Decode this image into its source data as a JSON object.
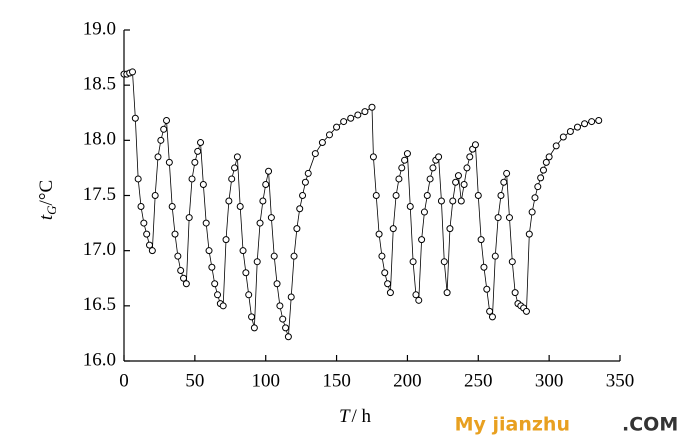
{
  "chart_data": {
    "type": "line",
    "xlabel": {
      "symbol": "T",
      "unit": "/ h"
    },
    "ylabel": {
      "symbol": "t",
      "subscript": "G",
      "unit": "/°C"
    },
    "color": "#000000",
    "x": [
      0,
      2,
      4,
      6,
      8,
      10,
      12,
      14,
      16,
      18,
      20,
      22,
      24,
      26,
      28,
      30,
      32,
      34,
      36,
      38,
      40,
      42,
      44,
      46,
      48,
      50,
      52,
      54,
      56,
      58,
      60,
      62,
      64,
      66,
      68,
      70,
      72,
      74,
      76,
      78,
      80,
      82,
      84,
      86,
      88,
      90,
      92,
      94,
      96,
      98,
      100,
      102,
      104,
      106,
      108,
      110,
      112,
      114,
      116,
      118,
      120,
      122,
      124,
      126,
      128,
      130,
      135,
      140,
      145,
      150,
      155,
      160,
      165,
      170,
      175,
      176,
      178,
      180,
      182,
      184,
      186,
      188,
      190,
      192,
      194,
      196,
      198,
      200,
      202,
      204,
      206,
      208,
      210,
      212,
      214,
      216,
      218,
      220,
      222,
      224,
      226,
      228,
      230,
      232,
      234,
      236,
      238,
      240,
      242,
      244,
      246,
      248,
      250,
      252,
      254,
      256,
      258,
      260,
      262,
      264,
      266,
      268,
      270,
      272,
      274,
      276,
      278,
      280,
      282,
      284,
      286,
      288,
      290,
      292,
      294,
      296,
      298,
      300,
      305,
      310,
      315,
      320,
      325,
      330,
      335
    ],
    "values": [
      18.6,
      18.6,
      18.61,
      18.62,
      18.2,
      17.65,
      17.4,
      17.25,
      17.15,
      17.05,
      17.0,
      17.5,
      17.85,
      18.0,
      18.1,
      18.18,
      17.8,
      17.4,
      17.15,
      16.95,
      16.82,
      16.75,
      16.7,
      17.3,
      17.65,
      17.8,
      17.9,
      17.98,
      17.6,
      17.25,
      17.0,
      16.85,
      16.7,
      16.6,
      16.52,
      16.5,
      17.1,
      17.45,
      17.65,
      17.75,
      17.85,
      17.4,
      17.0,
      16.8,
      16.6,
      16.4,
      16.3,
      16.9,
      17.25,
      17.45,
      17.6,
      17.72,
      17.3,
      16.95,
      16.7,
      16.5,
      16.38,
      16.3,
      16.22,
      16.58,
      16.95,
      17.2,
      17.38,
      17.5,
      17.62,
      17.7,
      17.88,
      17.98,
      18.05,
      18.12,
      18.17,
      18.2,
      18.23,
      18.26,
      18.3,
      17.85,
      17.5,
      17.15,
      16.95,
      16.8,
      16.7,
      16.62,
      17.2,
      17.5,
      17.65,
      17.75,
      17.82,
      17.88,
      17.4,
      16.9,
      16.6,
      16.55,
      17.1,
      17.35,
      17.5,
      17.65,
      17.75,
      17.82,
      17.85,
      17.45,
      16.9,
      16.62,
      17.2,
      17.45,
      17.62,
      17.68,
      17.45,
      17.6,
      17.75,
      17.85,
      17.92,
      17.96,
      17.5,
      17.1,
      16.85,
      16.65,
      16.45,
      16.4,
      16.95,
      17.3,
      17.5,
      17.62,
      17.7,
      17.3,
      16.9,
      16.62,
      16.52,
      16.5,
      16.48,
      16.45,
      17.15,
      17.35,
      17.48,
      17.58,
      17.66,
      17.73,
      17.8,
      17.85,
      17.95,
      18.03,
      18.08,
      18.12,
      18.15,
      18.17,
      18.18
    ],
    "xlim": [
      0,
      350
    ],
    "xticks": [
      0,
      50,
      100,
      150,
      200,
      250,
      300,
      350
    ],
    "ylim": [
      16,
      19
    ],
    "yticks": [
      {
        "value": 16,
        "label": "16.0"
      },
      {
        "value": 16.5,
        "label": "16.5"
      },
      {
        "value": 17,
        "label": "17.0"
      },
      {
        "value": 17.5,
        "label": "17.5"
      },
      {
        "value": 18,
        "label": "18.0"
      },
      {
        "value": 18.5,
        "label": "18.5"
      },
      {
        "value": 19,
        "label": "19.0"
      }
    ]
  },
  "watermark": {
    "text": "My jianzhu",
    "suffix": ".COM"
  }
}
